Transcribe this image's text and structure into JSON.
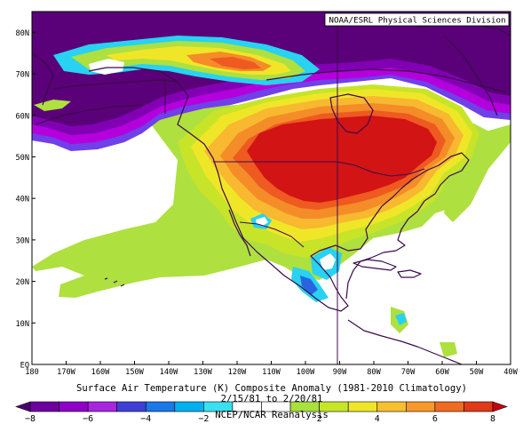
{
  "credit": "NOAA/ESRL Physical Sciences Division",
  "title_line1": "Surface Air Temperature (K) Composite Anomaly (1981-2010 Climatology)",
  "title_line2": "2/15/81 to 2/20/81",
  "title_line3": "NCEP/NCAR Reanalysis",
  "lat_labels": [
    "80N",
    "70N",
    "60N",
    "50N",
    "40N",
    "30N",
    "20N",
    "10N",
    "EQ"
  ],
  "lon_labels": [
    "180",
    "170W",
    "160W",
    "150W",
    "140W",
    "130W",
    "120W",
    "110W",
    "100W",
    "90W",
    "80W",
    "70W",
    "60W",
    "50W",
    "40W"
  ],
  "colorbar": {
    "tick_labels": [
      "-8",
      "-6",
      "-4",
      "-2",
      "2",
      "4",
      "6",
      "8"
    ],
    "colors": [
      "#4b0070",
      "#6e009f",
      "#8e00c8",
      "#a826e0",
      "#3f3fd8",
      "#1a78e8",
      "#00b0f0",
      "#38e0f0",
      "#ffffff",
      "#ffffff",
      "#a8e03c",
      "#c8e628",
      "#f0e628",
      "#f8c030",
      "#f89828",
      "#f06a20",
      "#e03a18",
      "#c80010"
    ]
  },
  "map": {
    "lon_range": [
      -180,
      -40
    ],
    "lat_range": [
      0,
      85
    ],
    "projection": "cylindrical equidistant",
    "colors": {
      "deep_purple": "#5a0078",
      "purple": "#8200b4",
      "magenta": "#b400dc",
      "violet": "#7040e8",
      "blue": "#2864e0",
      "cyan": "#28d2f0",
      "light_green": "#aee040",
      "green_yellow": "#c8e428",
      "yellow": "#f0e628",
      "light_orange": "#f8b830",
      "orange": "#f48c28",
      "red_orange": "#ee5a20",
      "red": "#d21414",
      "coast": "#3c0a4c"
    }
  }
}
